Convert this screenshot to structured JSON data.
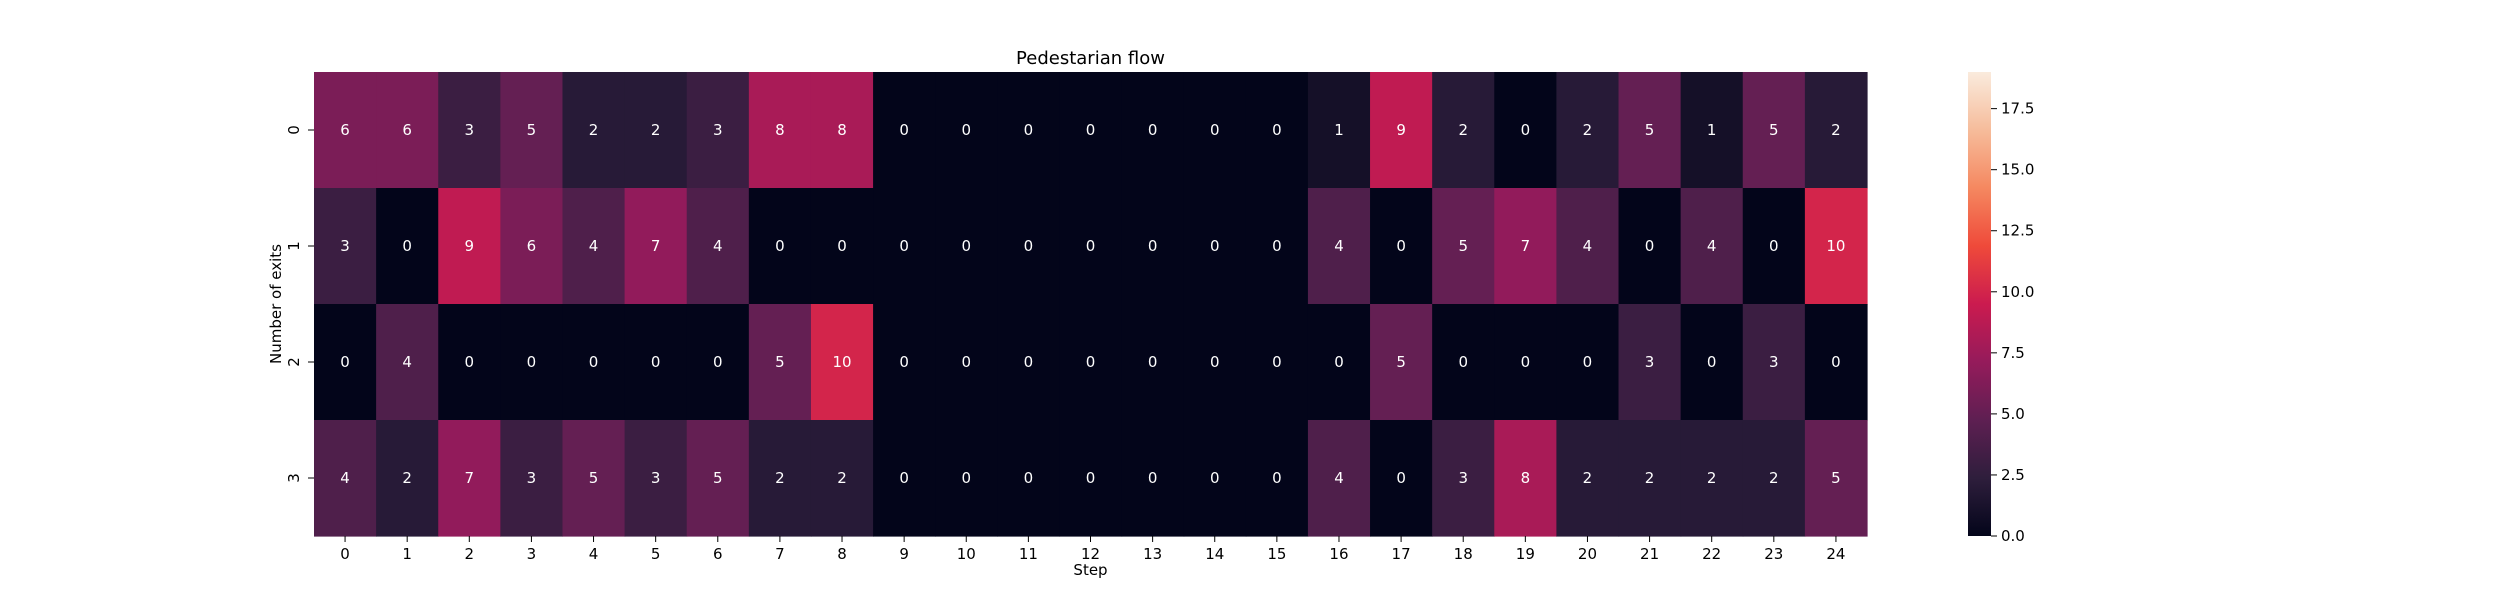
{
  "chart_data": {
    "type": "heatmap",
    "title": "Pedestarian flow",
    "xlabel": "Step",
    "ylabel": "Number of exits",
    "x_categories": [
      "0",
      "1",
      "2",
      "3",
      "4",
      "5",
      "6",
      "7",
      "8",
      "9",
      "10",
      "11",
      "12",
      "13",
      "14",
      "15",
      "16",
      "17",
      "18",
      "19",
      "20",
      "21",
      "22",
      "23",
      "24"
    ],
    "y_categories": [
      "0",
      "1",
      "2",
      "3"
    ],
    "values": [
      [
        6,
        6,
        3,
        5,
        2,
        2,
        3,
        8,
        8,
        0,
        0,
        0,
        0,
        0,
        0,
        0,
        1,
        9,
        2,
        0,
        2,
        5,
        1,
        5,
        2
      ],
      [
        3,
        0,
        9,
        6,
        4,
        7,
        4,
        0,
        0,
        0,
        0,
        0,
        0,
        0,
        0,
        0,
        4,
        0,
        5,
        7,
        4,
        0,
        4,
        0,
        10
      ],
      [
        0,
        4,
        0,
        0,
        0,
        0,
        0,
        5,
        10,
        0,
        0,
        0,
        0,
        0,
        0,
        0,
        0,
        5,
        0,
        0,
        0,
        3,
        0,
        3,
        0
      ],
      [
        4,
        2,
        7,
        3,
        5,
        3,
        5,
        2,
        2,
        0,
        0,
        0,
        0,
        0,
        0,
        0,
        4,
        0,
        3,
        8,
        2,
        2,
        2,
        2,
        5
      ]
    ],
    "colorbar": {
      "vmin": 0,
      "vmax": 19,
      "ticks": [
        0.0,
        2.5,
        5.0,
        7.5,
        10.0,
        12.5,
        15.0,
        17.5
      ],
      "tick_labels": [
        "0.0",
        "2.5",
        "5.0",
        "7.5",
        "10.0",
        "12.5",
        "15.0",
        "17.5"
      ],
      "colormap": "rocket",
      "color_stops": [
        "#03051a",
        "#2e1e3c",
        "#5e1f52",
        "#951b5b",
        "#cb1b4f",
        "#ef4a3a",
        "#f58860",
        "#f6bc9b",
        "#faebdd"
      ]
    },
    "annotation_color_dark_bg": "#ffffff",
    "annotation_color_light_bg": "#262626"
  }
}
